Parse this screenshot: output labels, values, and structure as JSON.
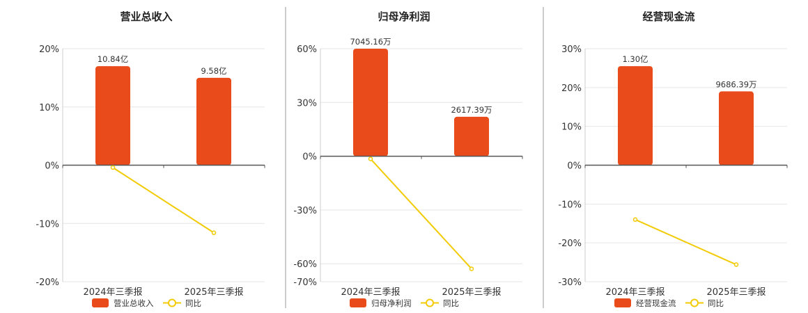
{
  "colors": {
    "bar": "#E94B1B",
    "line": "#F2CB05",
    "grid": "#E6E6E6",
    "axis": "#555555",
    "divider": "#999999"
  },
  "chart_data": [
    {
      "type": "bar",
      "title": "营业总收入",
      "categories": [
        "2024年三季报",
        "2025年三季报"
      ],
      "bar_series_name": "营业总收入",
      "bar_values_pct": [
        17,
        15
      ],
      "bar_labels": [
        "10.84亿",
        "9.58亿"
      ],
      "line_series_name": "同比",
      "line_values_pct": [
        -0.4,
        -11.6
      ],
      "y_ticks": [
        20,
        10,
        0,
        -10,
        -20
      ],
      "y_tick_labels": [
        "20%",
        "10%",
        "0%",
        "-10%",
        "-20%"
      ],
      "ylim": [
        -20,
        20
      ],
      "legend_position": "bottom"
    },
    {
      "type": "bar",
      "title": "归母净利润",
      "categories": [
        "2024年三季报",
        "2025年三季报"
      ],
      "bar_series_name": "归母净利润",
      "bar_values_pct": [
        60,
        22
      ],
      "bar_labels": [
        "7045.16万",
        "2617.39万"
      ],
      "line_series_name": "同比",
      "line_values_pct": [
        -1.5,
        -62.8
      ],
      "y_ticks": [
        60,
        30,
        0,
        -30,
        -60,
        -70
      ],
      "y_tick_labels": [
        "60%",
        "30%",
        "0%",
        "-30%",
        "-60%",
        "-70%"
      ],
      "ylim": [
        -70,
        60
      ],
      "legend_position": "bottom"
    },
    {
      "type": "bar",
      "title": "经营现金流",
      "categories": [
        "2024年三季报",
        "2025年三季报"
      ],
      "bar_series_name": "经营现金流",
      "bar_values_pct": [
        25.5,
        19
      ],
      "bar_labels": [
        "1.30亿",
        "9686.39万"
      ],
      "line_series_name": "同比",
      "line_values_pct": [
        -14,
        -25.6
      ],
      "y_ticks": [
        30,
        20,
        10,
        0,
        -10,
        -20,
        -30
      ],
      "y_tick_labels": [
        "30%",
        "20%",
        "10%",
        "0%",
        "-10%",
        "-20%",
        "-30%"
      ],
      "ylim": [
        -30,
        30
      ],
      "legend_position": "bottom"
    }
  ]
}
